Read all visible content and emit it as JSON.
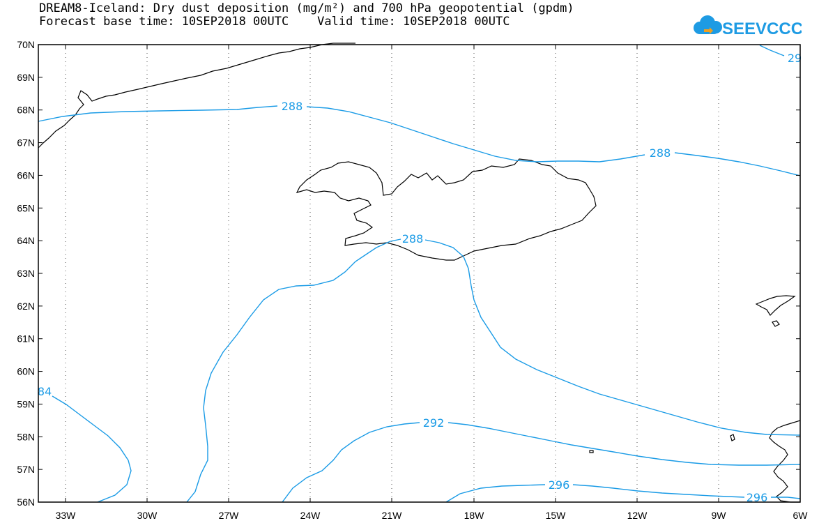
{
  "header": {
    "title_line1": "DREAM8-Iceland: Dry dust deposition (mg/m²) and 700 hPa geopotential (gpdm)",
    "title_line2": "Forecast base time: 10SEP2018 00UTC    Valid time: 10SEP2018 00UTC",
    "logo_text": "SEEVCCC",
    "logo_color": "#1e9be3"
  },
  "map": {
    "lat_labels": [
      "70N",
      "69N",
      "68N",
      "67N",
      "66N",
      "65N",
      "64N",
      "63N",
      "62N",
      "61N",
      "60N",
      "59N",
      "58N",
      "57N",
      "56N"
    ],
    "lon_labels": [
      "33W",
      "30W",
      "27W",
      "24W",
      "21W",
      "18W",
      "15W",
      "12W",
      "9W",
      "6W"
    ],
    "contour_color": "#1a9be6",
    "contour_labels": [
      "288",
      "288",
      "288",
      "292",
      "296",
      "296",
      "84",
      "29"
    ],
    "coastline_color": "#000000",
    "gridline_style": "dotted"
  }
}
